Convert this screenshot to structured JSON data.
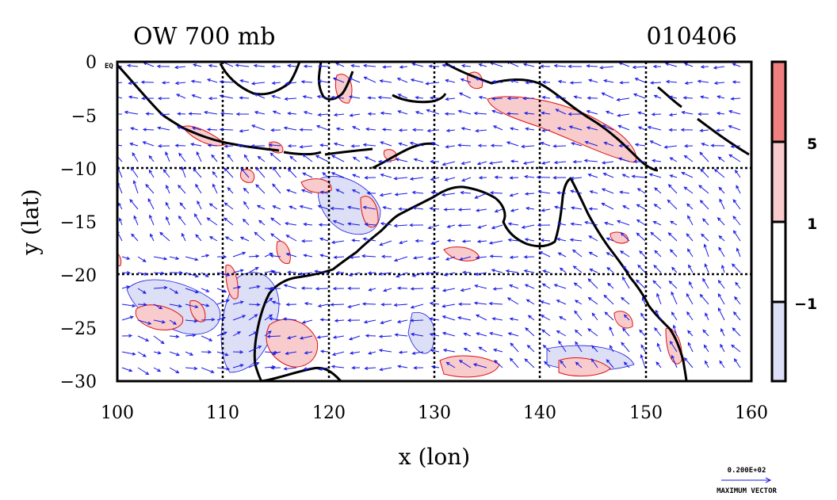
{
  "header": {
    "left_title": "OW 700 mb",
    "right_title": "010406"
  },
  "plot": {
    "xlabel": "x (lon)",
    "ylabel": "y (lat)",
    "corner_label": "EQ",
    "xlim": [
      100,
      160
    ],
    "ylim": [
      -30,
      0
    ],
    "x_ticks": [
      "100",
      "110",
      "120",
      "130",
      "140",
      "150",
      "160"
    ],
    "y_ticks": [
      "0",
      "−5",
      "−10",
      "−15",
      "−20",
      "−25",
      "−30"
    ],
    "grid_dashed_at_lon": [
      110,
      120,
      130,
      140,
      150
    ],
    "grid_dashed_at_lat": [
      -10,
      -20
    ]
  },
  "colorbar": {
    "labels": [
      "5",
      "1",
      "−1"
    ],
    "colors": [
      "#f08080",
      "#f8cccc",
      "#ffffff",
      "#dcdff5"
    ]
  },
  "vector_key": {
    "value": "0.200E+02",
    "label": "MAXIMUM VECTOR"
  },
  "colors": {
    "vector": "#1a1ae6",
    "positive_contour": "#e01010",
    "negative_contour": "#1a1ae6",
    "coast": "#000000"
  }
}
